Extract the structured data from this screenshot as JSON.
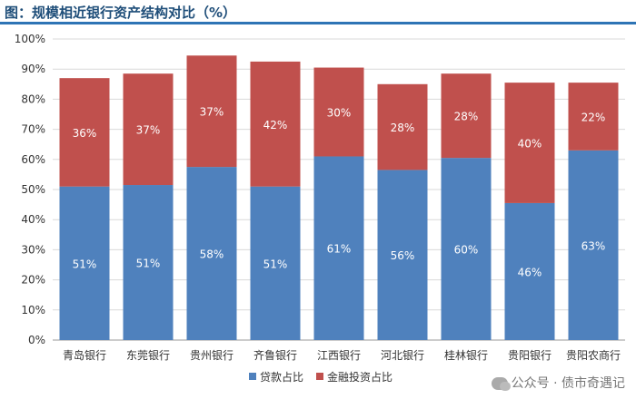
{
  "title": "图：规模相近银行资产结构对比（%）",
  "watermark": "公众号 · 债市奇遇记",
  "chart_data": {
    "type": "bar",
    "stacked": true,
    "categories": [
      "青岛银行",
      "东莞银行",
      "贵州银行",
      "齐鲁银行",
      "江西银行",
      "河北银行",
      "桂林银行",
      "贵阳银行",
      "贵阳农商行"
    ],
    "y_ticks": [
      "0%",
      "10%",
      "20%",
      "30%",
      "40%",
      "50%",
      "60%",
      "70%",
      "80%",
      "90%",
      "100%"
    ],
    "ylim": [
      0,
      100
    ],
    "legend_position": "bottom",
    "series": [
      {
        "name": "贷款占比",
        "color": "#4f81bd",
        "values": [
          51,
          51.5,
          57.5,
          51,
          61,
          56.5,
          60.5,
          45.5,
          63
        ],
        "labels": [
          "51%",
          "51%",
          "58%",
          "51%",
          "61%",
          "56%",
          "60%",
          "46%",
          "63%"
        ]
      },
      {
        "name": "金融投资占比",
        "color": "#c0504d",
        "values": [
          36,
          37,
          37,
          41.5,
          29.5,
          28.5,
          28,
          40,
          22.5
        ],
        "labels": [
          "36%",
          "37%",
          "37%",
          "42%",
          "30%",
          "28%",
          "28%",
          "40%",
          "22%"
        ]
      }
    ]
  }
}
